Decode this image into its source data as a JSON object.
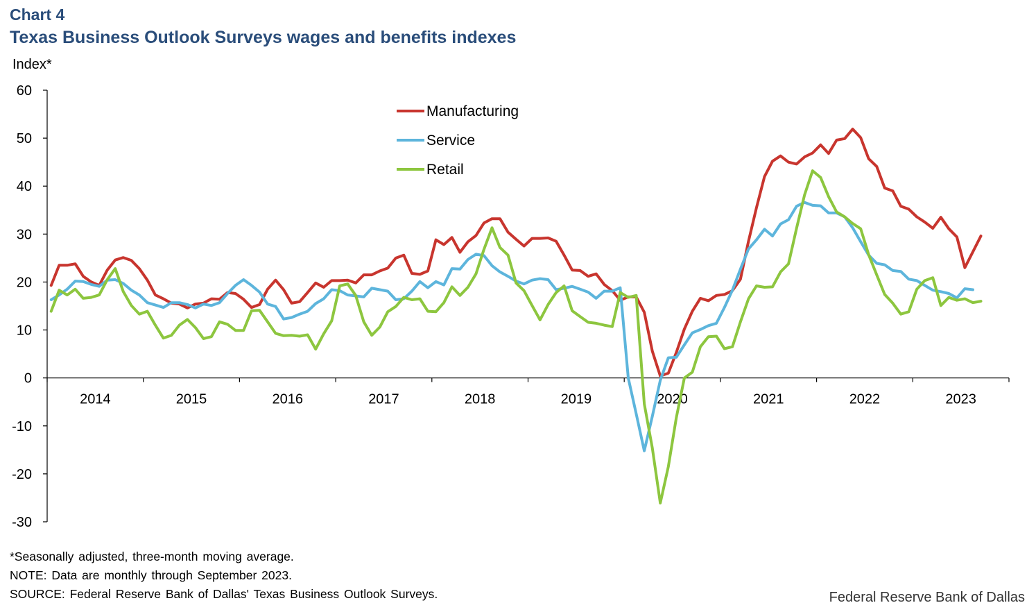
{
  "header": {
    "chart_number": "Chart 4",
    "title": "Texas Business Outlook Surveys wages and benefits indexes"
  },
  "footnotes": {
    "asterisk_note": "*Seasonally adjusted, three-month moving average.",
    "note": "NOTE: Data are monthly through September 2023.",
    "source": "SOURCE: Federal Reserve Bank of Dallas' Texas Business Outlook Surveys."
  },
  "credit": "Federal Reserve Bank of Dallas",
  "chart_data": {
    "type": "line",
    "title": "Texas Business Outlook Surveys wages and benefits indexes",
    "xlabel": "",
    "ylabel": "Index*",
    "ylim": [
      -30,
      60
    ],
    "yticks": [
      60,
      50,
      40,
      30,
      20,
      10,
      0,
      -10,
      -20,
      -30
    ],
    "grid": false,
    "legend_position": "top-center",
    "x_start": "2014-01",
    "x_end": "2023-09",
    "year_labels": [
      "2014",
      "2015",
      "2016",
      "2017",
      "2018",
      "2019",
      "2020",
      "2021",
      "2022",
      "2023"
    ],
    "series": [
      {
        "name": "Manufacturing",
        "color": "#c8352e",
        "values": [
          19.3,
          23.5,
          23.5,
          23.8,
          21.2,
          20.0,
          19.3,
          22.5,
          24.6,
          25.1,
          24.5,
          22.8,
          20.4,
          17.3,
          16.5,
          15.6,
          15.4,
          14.6,
          15.4,
          15.6,
          16.5,
          16.4,
          17.8,
          17.6,
          16.4,
          14.7,
          15.3,
          18.5,
          20.4,
          18.4,
          15.6,
          15.9,
          17.8,
          19.8,
          18.9,
          20.3,
          20.3,
          20.4,
          19.8,
          21.5,
          21.5,
          22.3,
          22.9,
          25.0,
          25.6,
          21.8,
          21.6,
          22.3,
          28.8,
          27.8,
          29.3,
          26.2,
          28.4,
          29.7,
          32.3,
          33.2,
          33.2,
          30.4,
          28.9,
          27.5,
          29.1,
          29.1,
          29.2,
          28.5,
          25.6,
          22.5,
          22.4,
          21.2,
          21.7,
          19.5,
          18.2,
          16.2,
          16.9,
          16.9,
          13.7,
          5.6,
          0.4,
          1.0,
          5.3,
          10.2,
          13.9,
          16.6,
          16.1,
          17.2,
          17.4,
          18.2,
          20.6,
          28.5,
          35.5,
          42.0,
          45.2,
          46.3,
          45.0,
          44.6,
          46.1,
          46.9,
          48.6,
          46.8,
          49.6,
          49.9,
          51.9,
          50.1,
          45.7,
          44.1,
          39.6,
          39.0,
          35.8,
          35.2,
          33.6,
          32.5,
          31.2,
          33.5,
          31.1,
          29.4,
          23.0,
          26.3,
          29.6
        ]
      },
      {
        "name": "Service",
        "color": "#5db5dc",
        "values": [
          16.3,
          17.3,
          18.5,
          20.2,
          20.1,
          19.5,
          19.1,
          20.4,
          20.5,
          19.7,
          18.3,
          17.3,
          15.7,
          15.2,
          14.7,
          15.7,
          15.7,
          15.3,
          14.6,
          15.4,
          15.1,
          15.7,
          17.6,
          19.3,
          20.5,
          19.3,
          17.9,
          15.4,
          14.9,
          12.3,
          12.6,
          13.3,
          13.9,
          15.5,
          16.5,
          18.4,
          18.2,
          17.3,
          17.1,
          16.9,
          18.7,
          18.4,
          18.1,
          16.3,
          16.5,
          18.1,
          20.1,
          18.8,
          20.1,
          19.4,
          22.8,
          22.7,
          24.7,
          25.8,
          25.5,
          23.4,
          22.1,
          21.2,
          20.2,
          19.6,
          20.4,
          20.7,
          20.5,
          18.4,
          18.7,
          19.1,
          18.5,
          17.9,
          16.6,
          18.1,
          18.1,
          18.8,
          0.0,
          -7.5,
          -15.2,
          -8.0,
          -0.5,
          4.2,
          4.3,
          6.9,
          9.4,
          10.1,
          10.9,
          11.4,
          14.7,
          18.3,
          22.7,
          26.9,
          28.8,
          31.0,
          29.6,
          32.1,
          33.0,
          35.8,
          36.6,
          36.0,
          35.9,
          34.4,
          34.4,
          33.6,
          31.3,
          28.4,
          25.6,
          23.9,
          23.6,
          22.4,
          22.2,
          20.6,
          20.3,
          19.3,
          18.3,
          18.0,
          17.6,
          16.7,
          18.6,
          18.4
        ]
      },
      {
        "name": "Retail",
        "color": "#8dc63f",
        "values": [
          13.9,
          18.3,
          17.3,
          18.5,
          16.6,
          16.8,
          17.3,
          20.5,
          22.8,
          18.0,
          15.1,
          13.3,
          13.9,
          11.0,
          8.3,
          8.9,
          11.0,
          12.2,
          10.5,
          8.2,
          8.6,
          11.7,
          11.2,
          9.9,
          9.9,
          14.0,
          14.1,
          11.7,
          9.3,
          8.8,
          8.9,
          8.7,
          9.0,
          6.0,
          9.2,
          11.9,
          19.2,
          19.6,
          17.2,
          11.7,
          8.9,
          10.6,
          13.8,
          14.9,
          16.8,
          16.3,
          16.5,
          13.9,
          13.8,
          15.7,
          19.0,
          17.2,
          18.9,
          21.7,
          26.8,
          31.3,
          27.2,
          25.6,
          19.8,
          18.2,
          15.1,
          12.1,
          15.3,
          17.8,
          19.2,
          14.0,
          12.8,
          11.6,
          11.4,
          11.0,
          10.7,
          17.8,
          16.8,
          17.2,
          -5.4,
          -14.6,
          -26.1,
          -18.5,
          -8.3,
          0.0,
          1.2,
          6.5,
          8.6,
          8.7,
          6.1,
          6.5,
          11.7,
          16.5,
          19.2,
          18.9,
          19.0,
          22.1,
          23.8,
          31.2,
          38.2,
          43.2,
          41.8,
          37.8,
          34.6,
          33.6,
          32.2,
          31.1,
          25.7,
          21.5,
          17.4,
          15.6,
          13.3,
          13.8,
          18.5,
          20.3,
          20.9,
          15.1,
          16.8,
          16.2,
          16.5,
          15.7,
          16.0
        ]
      }
    ]
  }
}
